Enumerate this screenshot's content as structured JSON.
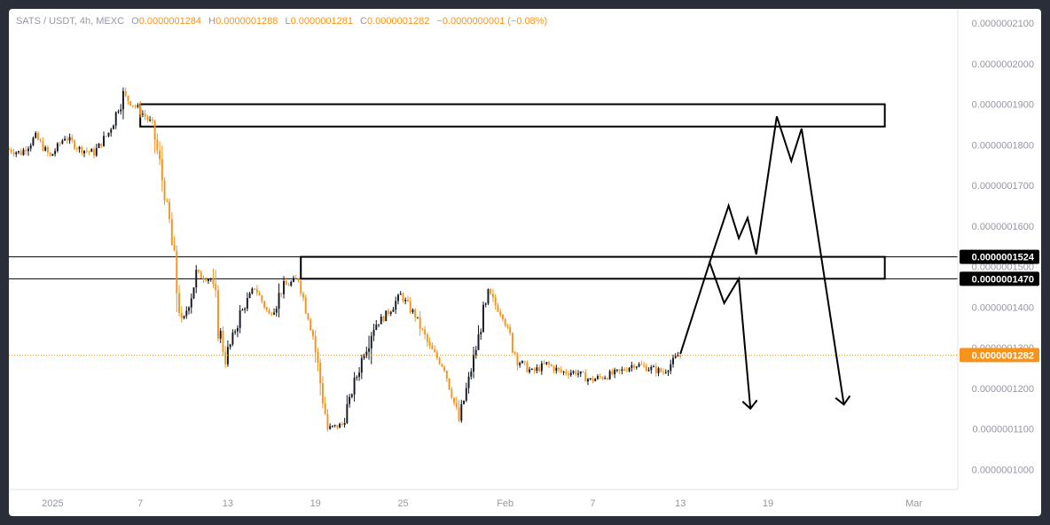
{
  "legend": {
    "symbol": "SATS / USDT, 4h, MEXC",
    "o_key": "O",
    "o_val": "0.0000001284",
    "h_key": "H",
    "h_val": "0.0000001288",
    "l_key": "L",
    "l_val": "0.0000001281",
    "c_key": "C",
    "c_val": "0.0000001282",
    "change": "−0.0000000001 (−0.08%)"
  },
  "colors": {
    "up": "#131722",
    "down": "#f7931a",
    "grid": "#f0f3fa",
    "axis_text": "#9598a1",
    "price_line": "#f7931a",
    "drawing": "#000000",
    "tag_dark": "#000000",
    "tag_orange": "#f7931a"
  },
  "chart_data": {
    "type": "candlestick",
    "title": "SATS / USDT, 4h, MEXC",
    "x_tick_labels": [
      "2025",
      "7",
      "13",
      "19",
      "25",
      "Feb",
      "7",
      "13",
      "19",
      "Mar"
    ],
    "x_tick_dates": [
      "2025-01-01",
      "2025-01-07",
      "2025-01-13",
      "2025-01-19",
      "2025-01-25",
      "2025-02-01",
      "2025-02-07",
      "2025-02-13",
      "2025-02-19",
      "2025-03-01"
    ],
    "y_tick_labels": [
      "0.0000002100",
      "0.0000002000",
      "0.0000001900",
      "0.0000001800",
      "0.0000001700",
      "0.0000001600",
      "0.0000001500",
      "0.0000001400",
      "0.0000001300",
      "0.0000001200",
      "0.0000001100",
      "0.0000001000"
    ],
    "y_tick_values": [
      210,
      200,
      190,
      180,
      170,
      160,
      150,
      140,
      130,
      120,
      110,
      100
    ],
    "y_scale": 1e-09,
    "ylim": [
      95.5,
      213.5
    ],
    "xlim": [
      "2024-12-29",
      "2025-03-04"
    ],
    "grid": false,
    "series": [
      {
        "price_path": [
          [
            "2024-12-29",
            179
          ],
          [
            "2024-12-30",
            178
          ],
          [
            "2024-12-31",
            182
          ],
          [
            "2025-01-01",
            177
          ],
          [
            "2025-01-02",
            182
          ],
          [
            "2025-01-03",
            179
          ],
          [
            "2025-01-04",
            178
          ],
          [
            "2025-01-05",
            183
          ],
          [
            "2025-01-06",
            192
          ],
          [
            "2025-01-07",
            189
          ],
          [
            "2025-01-08",
            185
          ],
          [
            "2025-01-09",
            165
          ],
          [
            "2025-01-10",
            135
          ],
          [
            "2025-01-11",
            148
          ],
          [
            "2025-01-12",
            147
          ],
          [
            "2025-01-13",
            127
          ],
          [
            "2025-01-14",
            138
          ],
          [
            "2025-01-15",
            145
          ],
          [
            "2025-01-16",
            138
          ],
          [
            "2025-01-17",
            145
          ],
          [
            "2025-01-18",
            147
          ],
          [
            "2025-01-19",
            133
          ],
          [
            "2025-01-20",
            110
          ],
          [
            "2025-01-21",
            111
          ],
          [
            "2025-01-22",
            123
          ],
          [
            "2025-01-23",
            135
          ],
          [
            "2025-01-24",
            138
          ],
          [
            "2025-01-25",
            143
          ],
          [
            "2025-01-26",
            138
          ],
          [
            "2025-01-27",
            130
          ],
          [
            "2025-01-28",
            125
          ],
          [
            "2025-01-29",
            112
          ],
          [
            "2025-01-30",
            127
          ],
          [
            "2025-01-31",
            143
          ],
          [
            "2025-02-01",
            138
          ],
          [
            "2025-02-02",
            127
          ],
          [
            "2025-02-03",
            124
          ],
          [
            "2025-02-04",
            126
          ],
          [
            "2025-02-05",
            124
          ],
          [
            "2025-02-06",
            124
          ],
          [
            "2025-02-07",
            122
          ],
          [
            "2025-02-08",
            123
          ],
          [
            "2025-02-09",
            124
          ],
          [
            "2025-02-10",
            126
          ],
          [
            "2025-02-11",
            125
          ],
          [
            "2025-02-12",
            124
          ],
          [
            "2025-02-13",
            128
          ]
        ]
      }
    ],
    "last_price": "0.0000001282",
    "last_price_value": 128.2,
    "price_tags": [
      {
        "label": "0.0000001524",
        "value": 152.4,
        "style": "dark"
      },
      {
        "label": "0.0000001470",
        "value": 147.0,
        "style": "dark"
      },
      {
        "label": "0.0000001282",
        "value": 128.2,
        "style": "orange"
      }
    ],
    "annotations": {
      "zones": [
        {
          "name": "resistance-box-top",
          "from": "2025-01-07",
          "to": "2025-02-27",
          "low": 184.5,
          "high": 190.0
        },
        {
          "name": "resistance-box-mid",
          "from": "2025-01-18",
          "to": "2025-02-27",
          "low": 147.0,
          "high": 152.4
        }
      ],
      "horizontal_lines": [
        152.4,
        147.0
      ],
      "projection_paths": [
        [
          [
            "2025-02-13",
            128.5
          ],
          [
            "2025-02-15",
            151
          ],
          [
            "2025-02-16",
            141
          ],
          [
            "2025-02-17",
            147
          ],
          [
            "2025-02-17.8",
            115
          ]
        ],
        [
          [
            "2025-02-15",
            151
          ],
          [
            "2025-02-16.3",
            165
          ],
          [
            "2025-02-17",
            157
          ],
          [
            "2025-02-17.6",
            162
          ],
          [
            "2025-02-18.2",
            153
          ],
          [
            "2025-02-19.6",
            187
          ],
          [
            "2025-02-20.6",
            176
          ],
          [
            "2025-02-21.3",
            184
          ],
          [
            "2025-02-24.2",
            116
          ]
        ]
      ]
    }
  }
}
